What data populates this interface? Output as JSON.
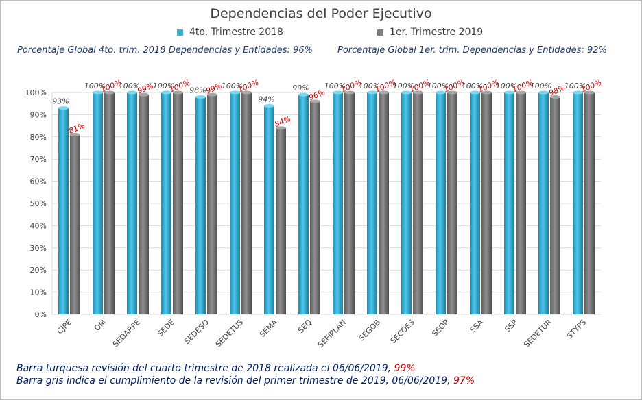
{
  "chart_data": {
    "type": "bar",
    "title": "Dependencias del Poder Ejecutivo",
    "subtitles": {
      "left": "Porcentaje Global 4to. trim. 2018 Dependencias y Entidades: 96%",
      "right": "Porcentaje Global  1er. trim. Dependencias y Entidades: 92%"
    },
    "categories": [
      "CJPE",
      "OM",
      "SEDARPE",
      "SEDE",
      "SEDESO",
      "SEDETUS",
      "SEMA",
      "SEQ",
      "SEFIPLAN",
      "SEGOB",
      "SECOES",
      "SEOP",
      "SSA",
      "SSP",
      "SEDETUR",
      "STYPS"
    ],
    "series": [
      {
        "name": "4to. Trimestre 2018",
        "color": "#3ab4d9",
        "values": [
          93,
          100,
          100,
          100,
          98,
          100,
          94,
          99,
          100,
          100,
          100,
          100,
          100,
          100,
          100,
          100
        ],
        "labels": [
          "93%",
          "100%",
          "100%",
          "100%",
          "98%",
          "100%",
          "94%",
          "99%",
          "100%",
          "100%",
          "100%",
          "100%",
          "100%",
          "100%",
          "100%",
          "100%"
        ]
      },
      {
        "name": "1er. Trimestre 2019",
        "color": "#7f7f7f",
        "values": [
          81,
          100,
          99,
          100,
          99,
          100,
          84,
          96,
          100,
          100,
          100,
          100,
          100,
          100,
          98,
          100
        ],
        "labels": [
          "81%",
          "100%",
          "99%",
          "100%",
          "99%",
          "100%",
          "84%",
          "96%",
          "100%",
          "100%",
          "100%",
          "100%",
          "100%",
          "100%",
          "98%",
          "100%"
        ]
      }
    ],
    "yticks": [
      "0%",
      "10%",
      "20%",
      "30%",
      "40%",
      "50%",
      "60%",
      "70%",
      "80%",
      "90%",
      "100%"
    ],
    "ylim": [
      0,
      100
    ],
    "grid": true,
    "legend_position": "top",
    "label_colors": {
      "series1": "#404040",
      "series2": "#c00000"
    }
  },
  "footnotes": [
    {
      "text": "Barra turquesa  revisión  del  cuarto  trimestre  de  2018  realizada  el   06/06/2019, ",
      "value": "99%"
    },
    {
      "text": "Barra gris indica el cumplimiento  de la revisión  del primer trimestre de 2019,   06/06/2019,  ",
      "value": "97%"
    }
  ]
}
